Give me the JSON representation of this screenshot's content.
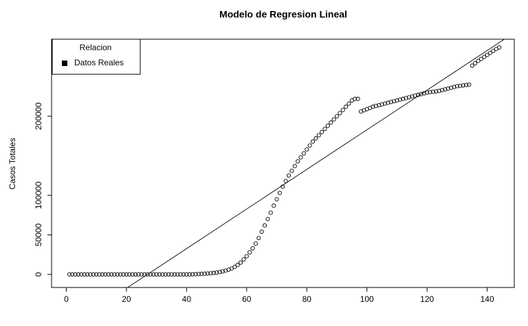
{
  "chart_data": {
    "type": "scatter",
    "title": "Modelo de Regresion Lineal",
    "y_label": "Casos Totales",
    "x": [
      1,
      2,
      3,
      4,
      5,
      6,
      7,
      8,
      9,
      10,
      11,
      12,
      13,
      14,
      15,
      16,
      17,
      18,
      19,
      20,
      21,
      22,
      23,
      24,
      25,
      26,
      27,
      28,
      29,
      30,
      31,
      32,
      33,
      34,
      35,
      36,
      37,
      38,
      39,
      40,
      41,
      42,
      43,
      44,
      45,
      46,
      47,
      48,
      49,
      50,
      51,
      52,
      53,
      54,
      55,
      56,
      57,
      58,
      59,
      60,
      61,
      62,
      63,
      64,
      65,
      66,
      67,
      68,
      69,
      70,
      71,
      72,
      73,
      74,
      75,
      76,
      77,
      78,
      79,
      80,
      81,
      82,
      83,
      84,
      85,
      86,
      87,
      88,
      89,
      90,
      91,
      92,
      93,
      94,
      95,
      96,
      97,
      98,
      99,
      100,
      101,
      102,
      103,
      104,
      105,
      106,
      107,
      108,
      109,
      110,
      111,
      112,
      113,
      114,
      115,
      116,
      117,
      118,
      119,
      120,
      121,
      122,
      123,
      124,
      125,
      126,
      127,
      128,
      129,
      130,
      131,
      132,
      133,
      134,
      135,
      136,
      137,
      138,
      139,
      140,
      141,
      142,
      143,
      144
    ],
    "values": [
      0,
      0,
      0,
      0,
      0,
      0,
      0,
      0,
      0,
      0,
      0,
      0,
      0,
      0,
      0,
      0,
      0,
      0,
      0,
      0,
      0,
      0,
      0,
      0,
      0,
      0,
      0,
      0,
      0,
      0,
      0,
      0,
      0,
      0,
      0,
      0,
      0,
      0,
      0,
      0,
      100,
      200,
      300,
      500,
      700,
      900,
      1200,
      1500,
      1900,
      2400,
      3000,
      3800,
      4800,
      6000,
      7500,
      9500,
      12000,
      15000,
      19000,
      23000,
      28000,
      33000,
      39000,
      46000,
      54000,
      62000,
      70000,
      78000,
      87000,
      95000,
      103000,
      111000,
      118000,
      125000,
      131000,
      137000,
      143000,
      148000,
      153000,
      158000,
      163000,
      168000,
      172000,
      176000,
      180000,
      184000,
      188000,
      192000,
      196000,
      200000,
      204000,
      208000,
      212000,
      216000,
      220000,
      222000,
      222000,
      206000,
      207500,
      209000,
      210500,
      212000,
      213000,
      214000,
      215000,
      216000,
      217000,
      218000,
      219000,
      220000,
      221000,
      222000,
      223000,
      224000,
      225000,
      226000,
      227000,
      228000,
      229000,
      230000,
      230500,
      231000,
      231500,
      232000,
      233000,
      234000,
      235000,
      236000,
      237000,
      238000,
      238500,
      239000,
      239500,
      240000,
      264000,
      267000,
      270000,
      272500,
      275000,
      277500,
      280000,
      282500,
      285000,
      287000
    ],
    "regression": {
      "intercept": -67600,
      "slope": 2505
    },
    "legend": {
      "title": "Relacion",
      "entries": [
        "Datos Reales"
      ],
      "color": "#000000",
      "position": "top-left"
    },
    "xlim": [
      -4.9,
      149
    ],
    "ylim": [
      -16500,
      297400
    ],
    "xticks": [
      0,
      20,
      40,
      60,
      80,
      100,
      120,
      140
    ],
    "yticks": [
      0,
      50000,
      100000,
      200000
    ]
  }
}
